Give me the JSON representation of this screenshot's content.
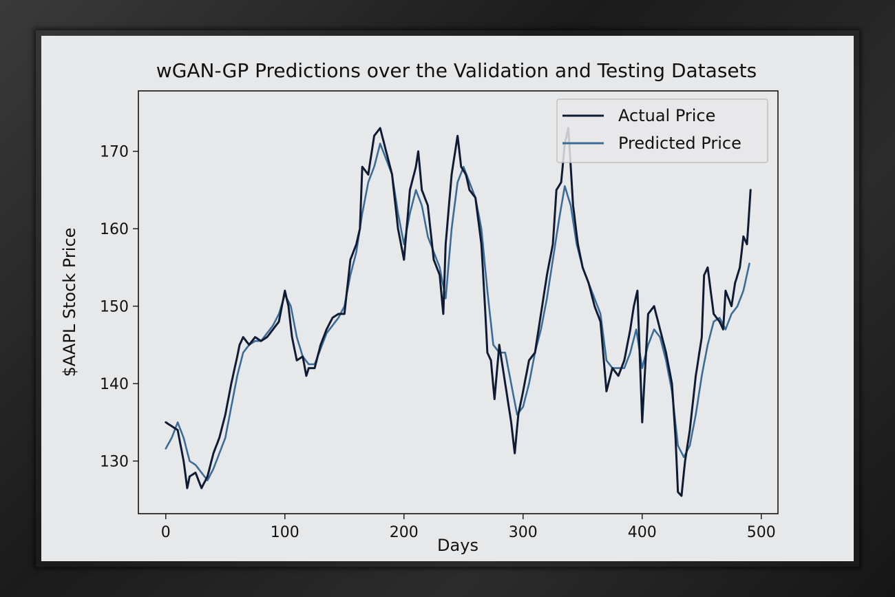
{
  "chart_data": {
    "type": "line",
    "title": "wGAN-GP Predictions over the Validation and Testing Datasets",
    "xlabel": "Days",
    "ylabel": "$AAPL Stock Price",
    "xlim": [
      -23,
      514
    ],
    "ylim": [
      123.2,
      177.8
    ],
    "xticks": [
      0,
      100,
      200,
      300,
      400,
      500
    ],
    "yticks": [
      130,
      140,
      150,
      160,
      170
    ],
    "grid": false,
    "legend": "top-right",
    "series": [
      {
        "name": "Actual Price",
        "color": "#0f1a33",
        "keypoints": [
          [
            0,
            135
          ],
          [
            5,
            134.5
          ],
          [
            10,
            134
          ],
          [
            15,
            130
          ],
          [
            18,
            126.5
          ],
          [
            20,
            128
          ],
          [
            25,
            128.5
          ],
          [
            30,
            126.5
          ],
          [
            35,
            128
          ],
          [
            40,
            131
          ],
          [
            45,
            133
          ],
          [
            50,
            136
          ],
          [
            55,
            140
          ],
          [
            60,
            143.5
          ],
          [
            62,
            145
          ],
          [
            65,
            146
          ],
          [
            70,
            145
          ],
          [
            75,
            146
          ],
          [
            80,
            145.5
          ],
          [
            85,
            146
          ],
          [
            90,
            147
          ],
          [
            95,
            148
          ],
          [
            100,
            152
          ],
          [
            103,
            150
          ],
          [
            106,
            146
          ],
          [
            110,
            143
          ],
          [
            115,
            143.5
          ],
          [
            118,
            141
          ],
          [
            120,
            142
          ],
          [
            125,
            142
          ],
          [
            130,
            145
          ],
          [
            135,
            147
          ],
          [
            140,
            148.5
          ],
          [
            145,
            149
          ],
          [
            150,
            149
          ],
          [
            155,
            156
          ],
          [
            160,
            158
          ],
          [
            163,
            160
          ],
          [
            165,
            168
          ],
          [
            170,
            167
          ],
          [
            175,
            172
          ],
          [
            180,
            173
          ],
          [
            185,
            170
          ],
          [
            190,
            167
          ],
          [
            195,
            160
          ],
          [
            200,
            156
          ],
          [
            205,
            165
          ],
          [
            210,
            168
          ],
          [
            212,
            170
          ],
          [
            215,
            165
          ],
          [
            220,
            163
          ],
          [
            225,
            156
          ],
          [
            230,
            154
          ],
          [
            233,
            149
          ],
          [
            235,
            158
          ],
          [
            240,
            167
          ],
          [
            245,
            172
          ],
          [
            248,
            168
          ],
          [
            252,
            167
          ],
          [
            255,
            165
          ],
          [
            260,
            164
          ],
          [
            265,
            158
          ],
          [
            268,
            150
          ],
          [
            270,
            144
          ],
          [
            273,
            143
          ],
          [
            276,
            138
          ],
          [
            280,
            145
          ],
          [
            285,
            140
          ],
          [
            290,
            135
          ],
          [
            293,
            131
          ],
          [
            296,
            136
          ],
          [
            300,
            139
          ],
          [
            305,
            143
          ],
          [
            310,
            144
          ],
          [
            315,
            149
          ],
          [
            320,
            154
          ],
          [
            325,
            158
          ],
          [
            328,
            165
          ],
          [
            332,
            166
          ],
          [
            335,
            171
          ],
          [
            338,
            173
          ],
          [
            342,
            163
          ],
          [
            346,
            158
          ],
          [
            350,
            155
          ],
          [
            355,
            153
          ],
          [
            360,
            150
          ],
          [
            365,
            148
          ],
          [
            370,
            139
          ],
          [
            375,
            142
          ],
          [
            380,
            141
          ],
          [
            385,
            143
          ],
          [
            390,
            147
          ],
          [
            393,
            150
          ],
          [
            396,
            152
          ],
          [
            400,
            135
          ],
          [
            405,
            149
          ],
          [
            410,
            150
          ],
          [
            415,
            147
          ],
          [
            420,
            144
          ],
          [
            425,
            140
          ],
          [
            428,
            133
          ],
          [
            430,
            126
          ],
          [
            433,
            125.5
          ],
          [
            436,
            130
          ],
          [
            440,
            134
          ],
          [
            445,
            141
          ],
          [
            450,
            146
          ],
          [
            452,
            154
          ],
          [
            455,
            155
          ],
          [
            460,
            149
          ],
          [
            465,
            148
          ],
          [
            468,
            147
          ],
          [
            470,
            152
          ],
          [
            475,
            150
          ],
          [
            478,
            153
          ],
          [
            482,
            155
          ],
          [
            485,
            159
          ],
          [
            488,
            158
          ],
          [
            491,
            165
          ]
        ]
      },
      {
        "name": "Predicted Price",
        "color": "#3a6c97",
        "keypoints": [
          [
            0,
            131.6
          ],
          [
            5,
            133
          ],
          [
            10,
            135
          ],
          [
            15,
            133
          ],
          [
            20,
            130
          ],
          [
            25,
            129.5
          ],
          [
            30,
            128.5
          ],
          [
            35,
            127.5
          ],
          [
            40,
            129
          ],
          [
            45,
            131
          ],
          [
            50,
            133
          ],
          [
            55,
            137
          ],
          [
            60,
            141
          ],
          [
            65,
            144
          ],
          [
            70,
            145
          ],
          [
            75,
            145.5
          ],
          [
            80,
            145.5
          ],
          [
            85,
            146.5
          ],
          [
            90,
            147.5
          ],
          [
            95,
            149
          ],
          [
            100,
            151.5
          ],
          [
            105,
            150
          ],
          [
            110,
            146
          ],
          [
            115,
            143.5
          ],
          [
            120,
            142.5
          ],
          [
            125,
            142.5
          ],
          [
            130,
            144.5
          ],
          [
            135,
            146.5
          ],
          [
            140,
            147.5
          ],
          [
            145,
            148.5
          ],
          [
            150,
            150
          ],
          [
            155,
            154
          ],
          [
            160,
            157
          ],
          [
            165,
            162
          ],
          [
            170,
            166
          ],
          [
            175,
            168
          ],
          [
            180,
            171
          ],
          [
            185,
            169
          ],
          [
            190,
            167
          ],
          [
            195,
            162
          ],
          [
            200,
            158
          ],
          [
            205,
            162
          ],
          [
            210,
            165
          ],
          [
            215,
            163
          ],
          [
            220,
            159
          ],
          [
            225,
            157
          ],
          [
            230,
            155
          ],
          [
            235,
            151
          ],
          [
            240,
            160
          ],
          [
            245,
            166
          ],
          [
            250,
            168
          ],
          [
            255,
            166
          ],
          [
            260,
            164
          ],
          [
            265,
            160
          ],
          [
            270,
            152
          ],
          [
            275,
            145
          ],
          [
            280,
            144
          ],
          [
            285,
            144
          ],
          [
            290,
            140
          ],
          [
            295,
            136
          ],
          [
            300,
            137
          ],
          [
            305,
            140
          ],
          [
            310,
            144
          ],
          [
            315,
            147
          ],
          [
            320,
            151
          ],
          [
            325,
            156
          ],
          [
            330,
            161
          ],
          [
            335,
            165.5
          ],
          [
            340,
            163
          ],
          [
            345,
            158
          ],
          [
            350,
            155
          ],
          [
            355,
            153
          ],
          [
            360,
            151
          ],
          [
            365,
            149
          ],
          [
            370,
            143
          ],
          [
            375,
            142
          ],
          [
            380,
            142
          ],
          [
            385,
            142
          ],
          [
            390,
            144
          ],
          [
            395,
            147
          ],
          [
            400,
            142
          ],
          [
            405,
            145
          ],
          [
            410,
            147
          ],
          [
            415,
            146
          ],
          [
            420,
            143
          ],
          [
            425,
            139
          ],
          [
            430,
            132
          ],
          [
            435,
            130.5
          ],
          [
            440,
            132
          ],
          [
            445,
            136
          ],
          [
            450,
            141
          ],
          [
            455,
            145
          ],
          [
            460,
            148
          ],
          [
            465,
            148.5
          ],
          [
            470,
            147
          ],
          [
            475,
            149
          ],
          [
            480,
            150
          ],
          [
            485,
            152
          ],
          [
            490,
            155.5
          ]
        ]
      }
    ]
  }
}
